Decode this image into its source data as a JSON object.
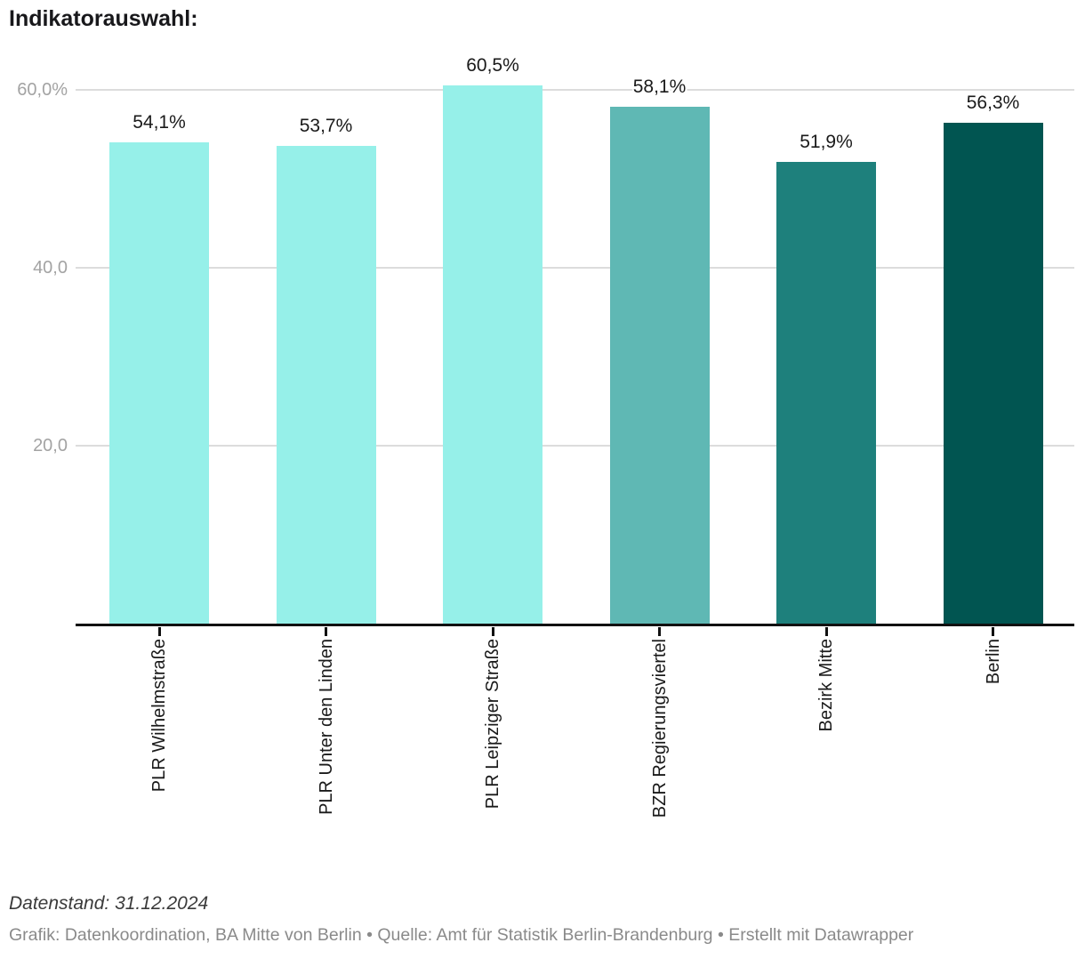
{
  "header": {
    "title": "Indikatorauswahl:"
  },
  "chart_data": {
    "type": "bar",
    "title": "Indikatorauswahl:",
    "xlabel": "",
    "ylabel": "",
    "unit": "%",
    "categories": [
      "PLR Wilhelmstraße",
      "PLR Unter den Linden",
      "PLR Leipziger Straße",
      "BZR Regierungsviertel",
      "Bezirk Mitte",
      "Berlin"
    ],
    "values": [
      54.1,
      53.7,
      60.5,
      58.1,
      51.9,
      56.3
    ],
    "value_labels": [
      "54,1%",
      "53,7%",
      "60,5%",
      "58,1%",
      "51,9%",
      "56,3%"
    ],
    "bar_colors": [
      "#96f0e9",
      "#96f0e9",
      "#96f0e9",
      "#5fb8b4",
      "#1e807c",
      "#015551"
    ],
    "ylim": [
      0,
      65
    ],
    "yticks": [
      {
        "value": 20,
        "label": "20,0"
      },
      {
        "value": 40,
        "label": "40,0"
      },
      {
        "value": 60,
        "label": "60,0%"
      }
    ],
    "grid": "horizontal",
    "legend_position": "none"
  },
  "footer": {
    "datenstand": "Datenstand: 31.12.2024",
    "credit": "Grafik: Datenkoordination, BA Mitte von Berlin • Quelle: Amt für Statistik Berlin-Brandenburg • Erstellt mit Datawrapper"
  }
}
